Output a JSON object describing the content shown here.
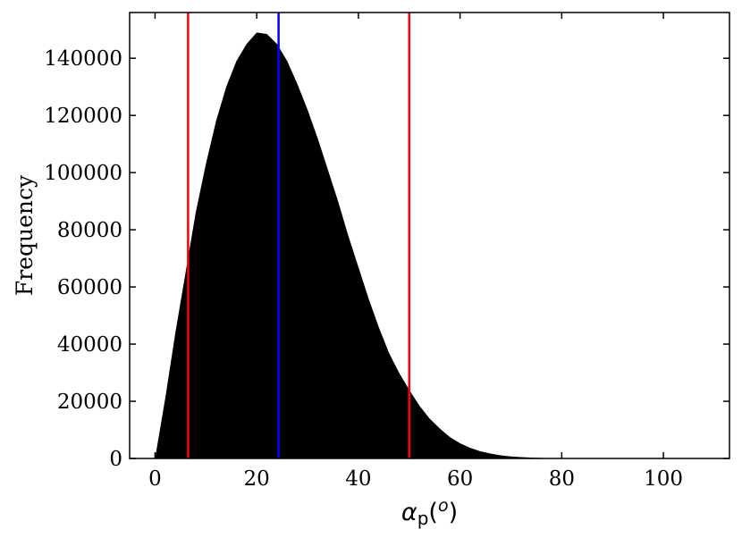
{
  "chart_data": {
    "type": "bar",
    "subtype": "histogram",
    "xlabel": "αp(o)",
    "xlabel_parts": {
      "symbol": "α",
      "subscript": "p",
      "open": "(",
      "superscript": "o",
      "close": ")"
    },
    "ylabel": "Frequency",
    "xlim": [
      -5,
      113
    ],
    "ylim": [
      0,
      156000
    ],
    "x_ticks": [
      0,
      20,
      40,
      60,
      80,
      100
    ],
    "y_ticks": [
      0,
      20000,
      40000,
      60000,
      80000,
      100000,
      120000,
      140000
    ],
    "grid": false,
    "legend": "none",
    "fill_color": "#000000",
    "x": [
      0,
      2,
      4,
      6,
      8,
      10,
      12,
      14,
      16,
      18,
      20,
      22,
      24,
      26,
      28,
      30,
      32,
      34,
      36,
      38,
      40,
      42,
      44,
      46,
      48,
      50,
      52,
      54,
      56,
      58,
      60,
      62,
      64,
      66,
      68,
      70,
      72,
      74,
      76,
      78,
      80,
      84,
      88,
      92,
      96,
      100,
      104,
      108
    ],
    "values": [
      0,
      21000,
      44000,
      65000,
      86000,
      103000,
      118000,
      130000,
      139000,
      145000,
      149000,
      148500,
      145000,
      139000,
      131000,
      122000,
      112000,
      101000,
      90000,
      78000,
      67000,
      56000,
      46000,
      37000,
      30000,
      24000,
      18500,
      14000,
      10500,
      7500,
      5300,
      3700,
      2500,
      1700,
      1100,
      700,
      450,
      300,
      200,
      120,
      80,
      30,
      12,
      6,
      3,
      1,
      0,
      0
    ],
    "vertical_lines": [
      {
        "x": 6.5,
        "color": "#ff0000"
      },
      {
        "x": 24.3,
        "color": "#0000ff"
      },
      {
        "x": 50.0,
        "color": "#ff0000"
      }
    ]
  }
}
